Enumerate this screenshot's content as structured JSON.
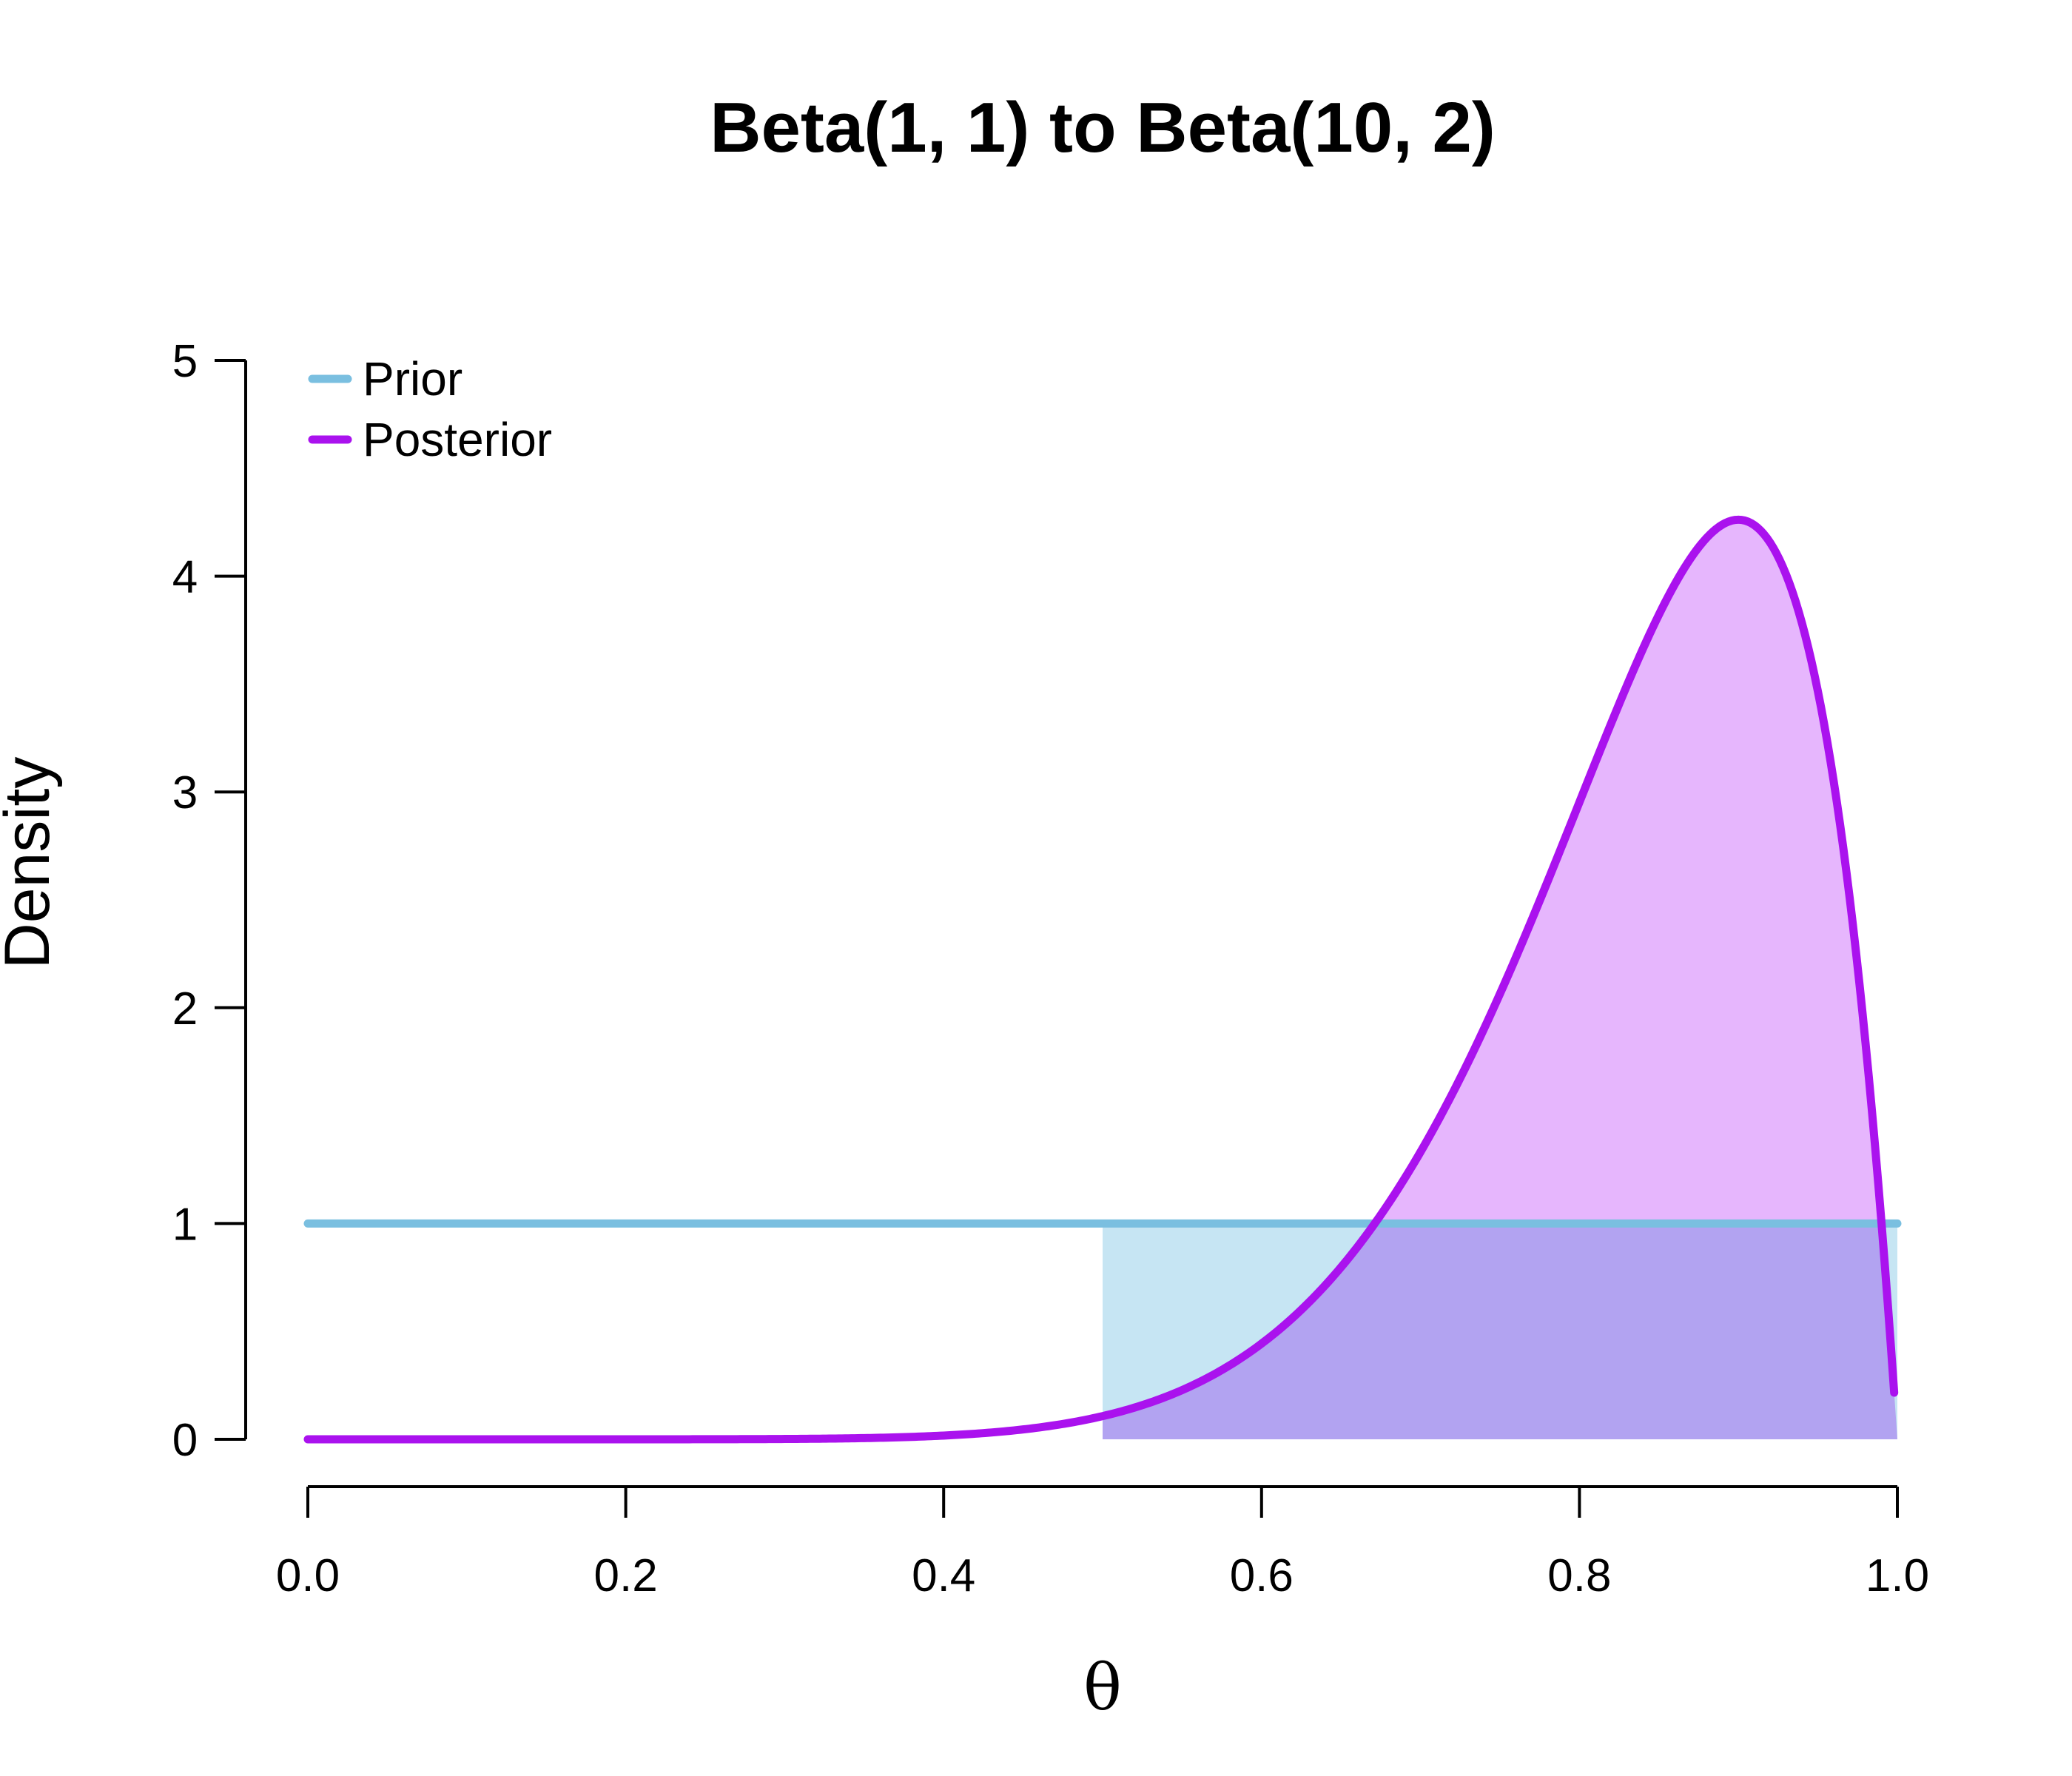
{
  "chart_data": {
    "type": "line",
    "title": "Beta(1, 1) to Beta(10, 2)",
    "xlabel": "θ",
    "ylabel": "Density",
    "xlim": [
      0,
      1
    ],
    "ylim": [
      0,
      5
    ],
    "x_ticks": [
      "0.0",
      "0.2",
      "0.4",
      "0.6",
      "0.8",
      "1.0"
    ],
    "y_ticks": [
      "0",
      "1",
      "2",
      "3",
      "4",
      "5"
    ],
    "grid": false,
    "legend_position": "top-left",
    "shaded_region": {
      "x_from": 0.5,
      "x_to": 1.0
    },
    "series": [
      {
        "name": "Prior",
        "distribution": "Beta(1, 1)",
        "color": "#7abfe0",
        "fill_color": "#c6e5f3",
        "x": [
          0.0,
          0.1,
          0.2,
          0.3,
          0.4,
          0.5,
          0.6,
          0.7,
          0.8,
          0.9,
          1.0
        ],
        "y": [
          1,
          1,
          1,
          1,
          1,
          1,
          1,
          1,
          1,
          1,
          1
        ]
      },
      {
        "name": "Posterior",
        "distribution": "Beta(10, 2)",
        "color": "#aa12ee",
        "fill_color": "#dd9efc",
        "x": [
          0.0,
          0.1,
          0.2,
          0.3,
          0.4,
          0.5,
          0.55,
          0.6,
          0.65,
          0.7,
          0.75,
          0.8,
          0.85,
          0.9,
          0.95,
          0.99,
          1.0
        ],
        "y": [
          0.0,
          0.0,
          0.0,
          0.0,
          0.02,
          0.11,
          0.23,
          0.44,
          0.77,
          1.24,
          1.86,
          2.6,
          3.35,
          4.26,
          4.0,
          1.0,
          0.1
        ]
      }
    ]
  }
}
